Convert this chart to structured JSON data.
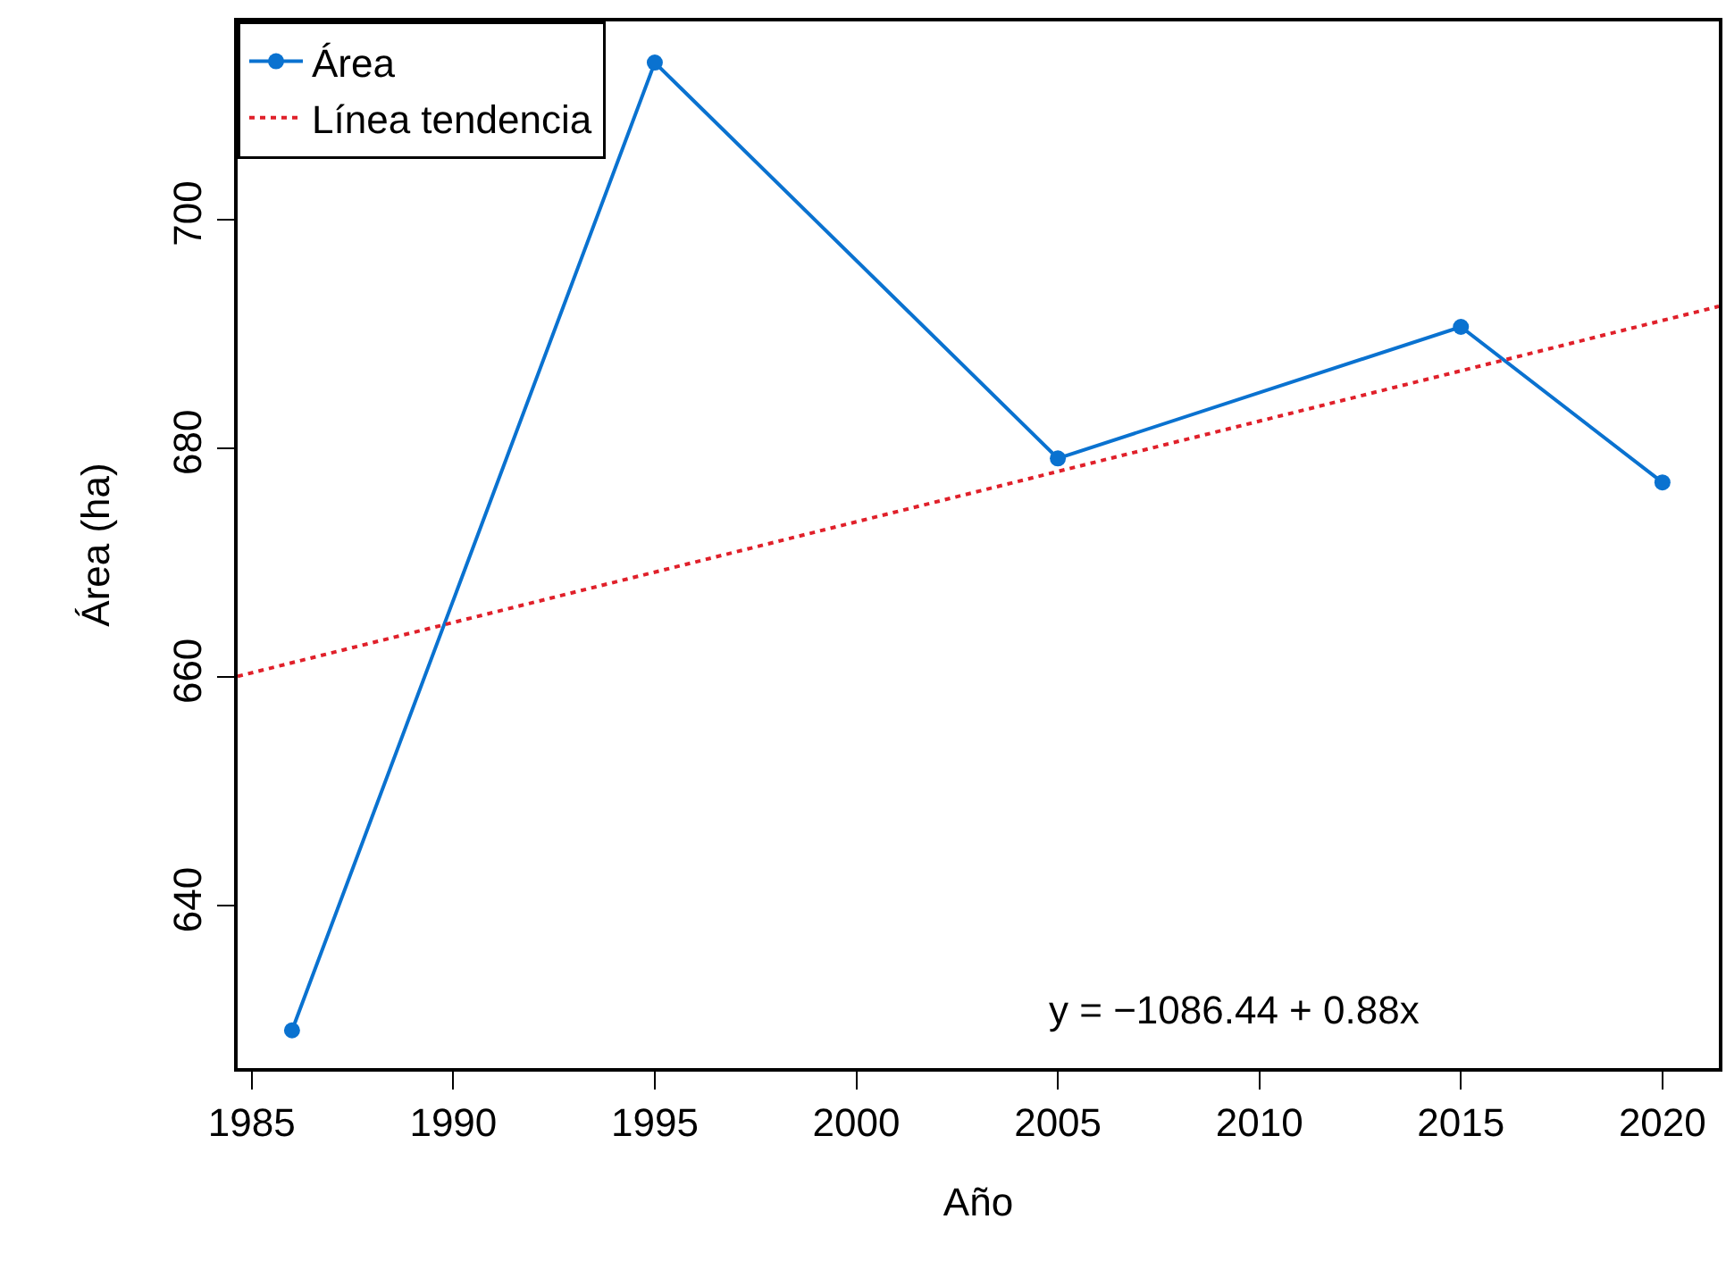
{
  "chart_data": {
    "type": "line",
    "xlabel": "Año",
    "ylabel": "Área (ha)",
    "xlim": [
      1984.65,
      2021.4
    ],
    "xticks": [
      1985,
      1990,
      1995,
      2000,
      2005,
      2010,
      2015,
      2020
    ],
    "ylim": [
      625.8,
      717.3
    ],
    "yticks": [
      640,
      660,
      680,
      700
    ],
    "series": [
      {
        "name": "Área",
        "color": "#0a72d0",
        "x": [
          1986,
          1995,
          2005,
          2015,
          2020
        ],
        "values": [
          629.1,
          713.7,
          679.1,
          690.6,
          677.0
        ],
        "marker": "circle",
        "line_style": "solid"
      },
      {
        "name": "Línea tendencia",
        "type": "line",
        "color": "#e0202a",
        "x": [
          1984.65,
          2021.4
        ],
        "values": [
          660.05,
          692.39
        ],
        "marker": "none",
        "line_style": "dotted"
      }
    ],
    "annotations": [
      "y = −1086.44 + 0.88x"
    ],
    "legend": "top left",
    "grid": false
  }
}
